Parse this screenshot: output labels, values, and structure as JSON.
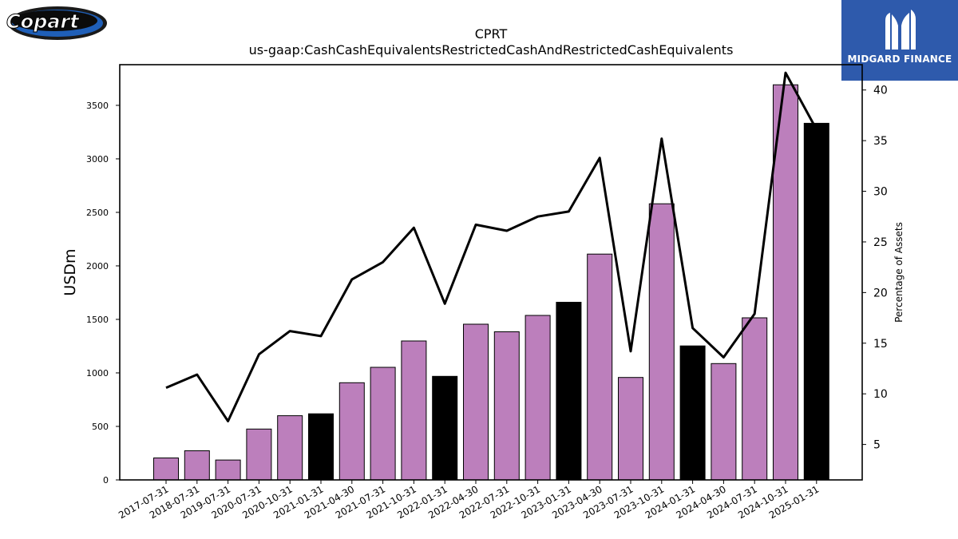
{
  "branding": {
    "left_logo_text": "Copart",
    "right_logo_text": "MIDGARD FINANCE"
  },
  "chart_data": {
    "type": "bar",
    "title": "CPRT",
    "subtitle": "us-gaap:CashCashEquivalentsRestrictedCashAndRestrictedCashEquivalents",
    "ylabel": "USDm",
    "y2label": "Percentage of Assets",
    "ylim": [
      0,
      3880
    ],
    "y2lim": [
      1.5,
      42.5
    ],
    "yticks": [
      0,
      500,
      1000,
      1500,
      2000,
      2500,
      3000,
      3500
    ],
    "y2ticks": [
      5,
      10,
      15,
      20,
      25,
      30,
      35,
      40
    ],
    "categories": [
      "2017-07-31",
      "2018-07-31",
      "2019-07-31",
      "2020-07-31",
      "2020-10-31",
      "2021-01-31",
      "2021-04-30",
      "2021-07-31",
      "2021-10-31",
      "2022-01-31",
      "2022-04-30",
      "2022-07-31",
      "2022-10-31",
      "2023-01-31",
      "2023-04-30",
      "2023-07-31",
      "2023-10-31",
      "2024-01-31",
      "2024-04-30",
      "2024-07-31",
      "2024-10-31",
      "2025-01-31"
    ],
    "series": [
      {
        "type": "bar",
        "values": [
          205,
          272,
          186,
          475,
          600,
          618,
          908,
          1052,
          1298,
          968,
          1455,
          1384,
          1537,
          1660,
          2110,
          957,
          2580,
          1252,
          1087,
          1515,
          3692,
          3332
        ],
        "colors": [
          "#bc7fbc",
          "#bc7fbc",
          "#bc7fbc",
          "#bc7fbc",
          "#bc7fbc",
          "#000000",
          "#bc7fbc",
          "#bc7fbc",
          "#bc7fbc",
          "#000000",
          "#bc7fbc",
          "#bc7fbc",
          "#bc7fbc",
          "#000000",
          "#bc7fbc",
          "#bc7fbc",
          "#bc7fbc",
          "#000000",
          "#bc7fbc",
          "#bc7fbc",
          "#bc7fbc",
          "#000000"
        ]
      },
      {
        "type": "line",
        "axis": "right",
        "color": "#000000",
        "values": [
          10.6,
          11.9,
          7.3,
          13.9,
          16.2,
          15.7,
          21.3,
          23.0,
          26.4,
          18.9,
          26.7,
          26.1,
          27.5,
          28.0,
          33.3,
          14.2,
          35.2,
          16.5,
          13.6,
          17.9,
          41.7,
          36.1
        ]
      }
    ],
    "grid": false,
    "legend": "none"
  }
}
